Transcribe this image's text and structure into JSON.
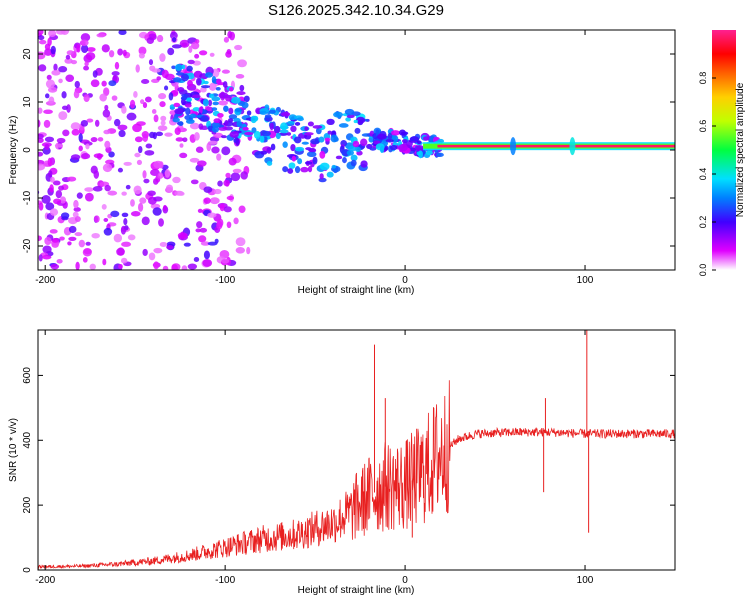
{
  "title": "S126.2025.342.10.34.G29",
  "colors": {
    "snr_line": "#e82020",
    "ridge": "#ff2060",
    "axis": "#000000",
    "background": "#ffffff"
  },
  "chart_data": [
    {
      "type": "heatmap",
      "name": "spectrogram",
      "xlabel": "Height of straight line (km)",
      "ylabel": "Frequency (Hz)",
      "xlim": [
        -204,
        150
      ],
      "ylim": [
        -25,
        25
      ],
      "xticks": [
        -200,
        -100,
        0,
        100
      ],
      "yticks": [
        -20,
        -10,
        0,
        10,
        20
      ],
      "colorbar": {
        "label": "Normalized spectral amplitude",
        "range": [
          0,
          1
        ],
        "ticks": [
          0.0,
          0.2,
          0.4,
          0.6,
          0.8
        ],
        "tick_labels": [
          "0.0",
          "0.2",
          "0.4",
          "0.6",
          "0.8"
        ],
        "colormap": [
          "#ffffff",
          "#c000ff",
          "#0000ff",
          "#00e0ff",
          "#00ff00",
          "#ffff00",
          "#ff8000",
          "#ff0000",
          "#ff2080"
        ]
      },
      "features": [
        {
          "name": "diffuse noise",
          "x_range": [
            -204,
            -110
          ],
          "freq_range": [
            -25,
            25
          ],
          "amplitude": 0.1
        },
        {
          "name": "descending trace",
          "points": [
            [
              -130,
              12
            ],
            [
              -110,
              10
            ],
            [
              -90,
              7
            ],
            [
              -75,
              3
            ],
            [
              -60,
              1
            ],
            [
              -45,
              -1
            ],
            [
              -35,
              3
            ],
            [
              -20,
              2
            ],
            [
              -5,
              2
            ],
            [
              5,
              1
            ],
            [
              20,
              0.8
            ]
          ],
          "amplitude": 0.35
        },
        {
          "name": "carrier ridge",
          "x_range": [
            10,
            150
          ],
          "freq": 0.8,
          "amplitude": 1.0
        },
        {
          "name": "spur",
          "x": 60,
          "amplitude": 0.3
        },
        {
          "name": "spur",
          "x": 93,
          "amplitude": 0.4
        }
      ]
    },
    {
      "type": "line",
      "name": "snr",
      "xlabel": "Height of straight line (km)",
      "ylabel": "SNR (10 * v/v)",
      "xlim": [
        -204,
        150
      ],
      "ylim": [
        0,
        740
      ],
      "xticks": [
        -200,
        -100,
        0,
        100
      ],
      "yticks": [
        0,
        200,
        400,
        600
      ],
      "grid": false,
      "series": [
        {
          "name": "SNR",
          "x": [
            -204,
            -180,
            -160,
            -140,
            -120,
            -100,
            -80,
            -60,
            -40,
            -30,
            -20,
            -10,
            0,
            10,
            20,
            30,
            40,
            60,
            80,
            100,
            120,
            150
          ],
          "values": [
            10,
            12,
            18,
            28,
            45,
            70,
            95,
            110,
            145,
            180,
            230,
            260,
            260,
            300,
            360,
            405,
            420,
            425,
            425,
            420,
            420,
            420
          ]
        }
      ],
      "spikes": [
        {
          "x": -17,
          "value": 695
        },
        {
          "x": -11,
          "value": 530
        },
        {
          "x": 4,
          "value": 100
        },
        {
          "x": 78,
          "value": 530
        },
        {
          "x": 77,
          "value": 240
        },
        {
          "x": 101,
          "value": 740
        },
        {
          "x": 102,
          "value": 115
        }
      ]
    }
  ]
}
